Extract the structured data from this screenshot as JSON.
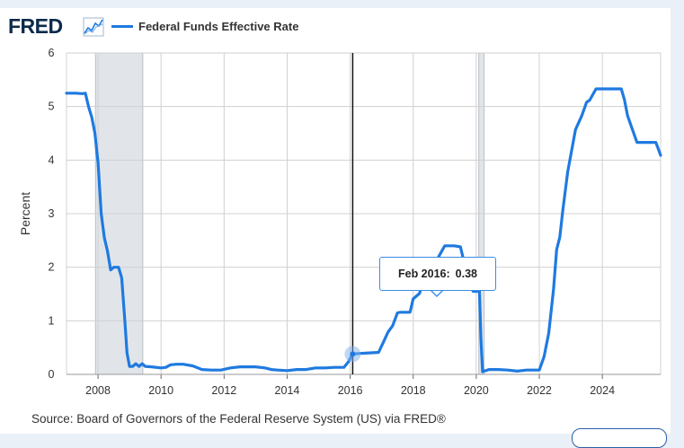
{
  "header": {
    "logo_text": "FRED",
    "logo_icon": "line-graph-icon",
    "series_label": "Federal Funds Effective Rate",
    "series_color": "#1f7ae0"
  },
  "source_text": "Source: Board of Governors of the Federal Reserve System (US) via FRED®",
  "tooltip": {
    "date": "Feb 2016:",
    "value": "0.38"
  },
  "chart_data": {
    "type": "line",
    "title": "Federal Funds Effective Rate",
    "xlabel": "",
    "ylabel": "Percent",
    "xlim": [
      2007.0,
      2025.85
    ],
    "ylim": [
      0,
      6
    ],
    "x_ticks": [
      2008,
      2010,
      2012,
      2014,
      2016,
      2018,
      2020,
      2022,
      2024
    ],
    "x_tick_labels": [
      "2008",
      "2010",
      "2012",
      "2014",
      "2016",
      "2018",
      "2020",
      "2022",
      "2024"
    ],
    "y_ticks": [
      0,
      1,
      2,
      3,
      4,
      5,
      6
    ],
    "y_tick_labels": [
      "0",
      "1",
      "2",
      "3",
      "4",
      "5",
      "6"
    ],
    "grid": true,
    "recessions": [
      [
        2007.92,
        2009.42
      ],
      [
        2020.08,
        2020.25
      ]
    ],
    "hover_x": 2016.08,
    "series": [
      {
        "name": "Federal Funds Effective Rate",
        "color": "#1f7ae0",
        "x": [
          2007.0,
          2007.3,
          2007.5,
          2007.6,
          2007.7,
          2007.8,
          2007.9,
          2008.0,
          2008.1,
          2008.2,
          2008.3,
          2008.4,
          2008.5,
          2008.65,
          2008.75,
          2008.85,
          2008.92,
          2009.0,
          2009.1,
          2009.2,
          2009.3,
          2009.4,
          2009.5,
          2009.7,
          2010.0,
          2010.15,
          2010.3,
          2010.5,
          2010.7,
          2011.0,
          2011.3,
          2011.6,
          2011.9,
          2012.2,
          2012.5,
          2012.7,
          2013.0,
          2013.3,
          2013.5,
          2013.7,
          2014.0,
          2014.3,
          2014.6,
          2014.9,
          2015.2,
          2015.5,
          2015.8,
          2015.95,
          2016.08,
          2016.3,
          2016.6,
          2016.9,
          2017.1,
          2017.2,
          2017.35,
          2017.5,
          2017.6,
          2017.9,
          2018.0,
          2018.2,
          2018.3,
          2018.5,
          2018.7,
          2018.8,
          2019.0,
          2019.3,
          2019.5,
          2019.6,
          2019.7,
          2019.9,
          2020.1,
          2020.15,
          2020.2,
          2020.4,
          2020.7,
          2021.0,
          2021.3,
          2021.6,
          2021.9,
          2022.0,
          2022.15,
          2022.3,
          2022.45,
          2022.55,
          2022.65,
          2022.75,
          2022.9,
          2023.0,
          2023.15,
          2023.35,
          2023.5,
          2023.6,
          2023.8,
          2024.0,
          2024.3,
          2024.6,
          2024.7,
          2024.8,
          2024.95,
          2025.1,
          2025.4,
          2025.7,
          2025.85
        ],
        "values": [
          5.25,
          5.25,
          5.24,
          5.25,
          5.0,
          4.8,
          4.5,
          3.95,
          3.0,
          2.55,
          2.3,
          1.95,
          2.0,
          2.0,
          1.8,
          1.0,
          0.4,
          0.15,
          0.15,
          0.2,
          0.15,
          0.2,
          0.15,
          0.14,
          0.12,
          0.13,
          0.18,
          0.19,
          0.19,
          0.16,
          0.09,
          0.08,
          0.08,
          0.12,
          0.14,
          0.14,
          0.14,
          0.12,
          0.09,
          0.08,
          0.07,
          0.09,
          0.09,
          0.12,
          0.12,
          0.13,
          0.13,
          0.24,
          0.38,
          0.39,
          0.4,
          0.41,
          0.66,
          0.79,
          0.91,
          1.15,
          1.16,
          1.16,
          1.41,
          1.51,
          1.69,
          1.82,
          1.91,
          2.19,
          2.4,
          2.4,
          2.38,
          2.13,
          1.85,
          1.55,
          1.55,
          0.65,
          0.05,
          0.09,
          0.09,
          0.08,
          0.06,
          0.08,
          0.08,
          0.08,
          0.33,
          0.77,
          1.58,
          2.33,
          2.56,
          3.08,
          3.78,
          4.1,
          4.57,
          4.83,
          5.08,
          5.12,
          5.33,
          5.33,
          5.33,
          5.33,
          5.13,
          4.83,
          4.58,
          4.33,
          4.33,
          4.33,
          4.09
        ]
      }
    ]
  }
}
